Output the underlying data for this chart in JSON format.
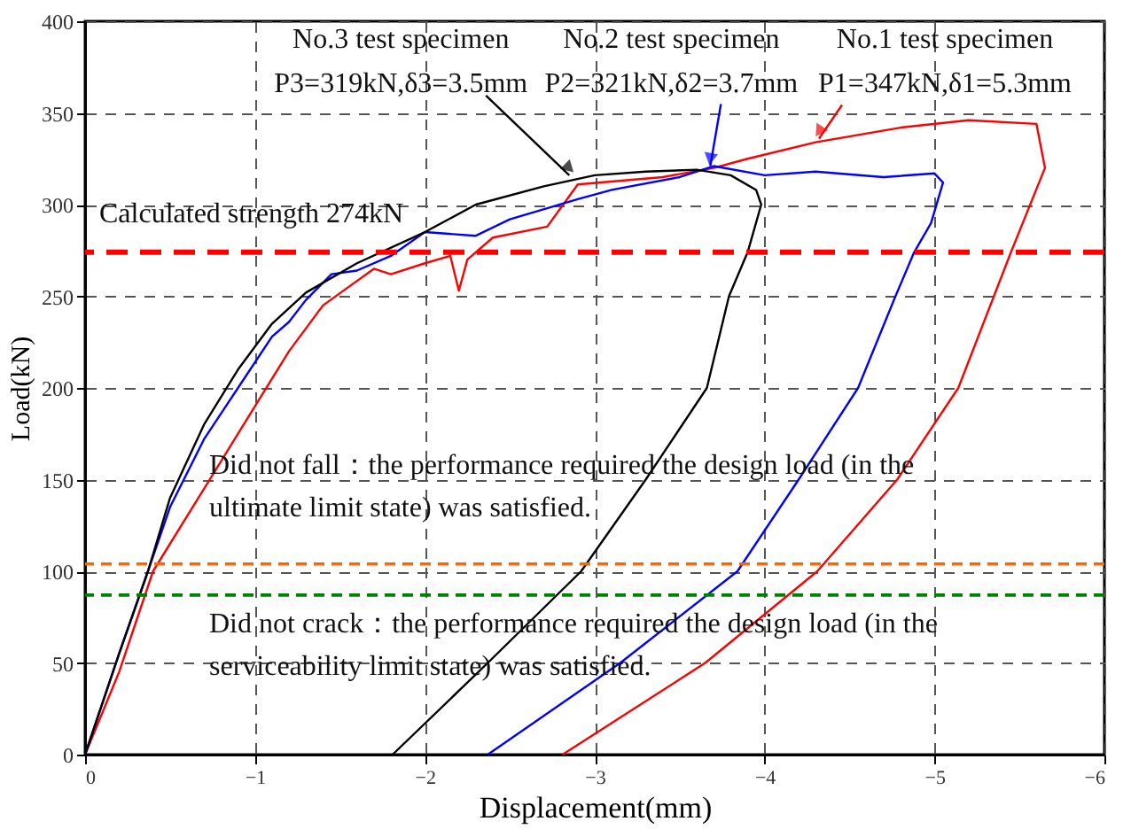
{
  "chart_data": {
    "type": "line",
    "xlabel": "Displacement(mm)",
    "ylabel": "Load(kN)",
    "xlim": [
      0,
      -6
    ],
    "xticks": [
      0,
      -1,
      -2,
      -3,
      -4,
      -5,
      -6
    ],
    "ylim": [
      0,
      400
    ],
    "yticks": [
      0,
      50,
      100,
      150,
      200,
      250,
      300,
      350,
      400
    ],
    "grid": true,
    "line_style": "solid",
    "marker": "none",
    "series": [
      {
        "color": "#ff0000",
        "x": [
          0,
          -0.2,
          -0.4,
          -0.6,
          -0.8,
          -1.0,
          -1.2,
          -1.4,
          -1.55,
          -1.7,
          -1.8,
          -2.0,
          -2.15,
          -2.2,
          -2.25,
          -2.4,
          -2.72,
          -2.9,
          -3.4,
          -3.7,
          -3.9,
          -4.3,
          -4.8,
          -5.2,
          -5.6,
          -5.65,
          -5.45,
          -5.14,
          -4.78,
          -4.31,
          -3.65,
          -2.81
        ],
        "values": [
          0,
          45,
          100,
          130,
          160,
          190,
          220,
          245,
          255,
          265,
          262,
          268,
          272,
          253,
          270,
          282,
          288,
          311,
          315,
          320,
          325,
          334,
          342,
          346,
          344,
          320,
          274,
          200,
          150,
          100,
          50,
          0
        ]
      },
      {
        "color": "#0000ff",
        "x": [
          0,
          -0.2,
          -0.37,
          -0.5,
          -0.7,
          -0.9,
          -1.1,
          -1.2,
          -1.3,
          -1.45,
          -1.6,
          -1.8,
          -2.0,
          -2.3,
          -2.5,
          -2.9,
          -3.1,
          -3.5,
          -3.7,
          -4.0,
          -4.3,
          -4.7,
          -5.0,
          -5.05,
          -4.98,
          -4.88,
          -4.77,
          -4.55,
          -4.2,
          -3.84,
          -3.15,
          -2.37
        ],
        "values": [
          0,
          55,
          100,
          135,
          172,
          200,
          228,
          236,
          248,
          262,
          264,
          272,
          285,
          283,
          292,
          303,
          308,
          315,
          321,
          316,
          318,
          315,
          317,
          312,
          290,
          274,
          250,
          200,
          150,
          100,
          50,
          0
        ]
      },
      {
        "color": "#000000",
        "x": [
          0,
          -0.2,
          -0.37,
          -0.5,
          -0.7,
          -0.9,
          -1.1,
          -1.3,
          -1.6,
          -2.0,
          -2.3,
          -2.7,
          -3.0,
          -3.3,
          -3.6,
          -3.8,
          -3.95,
          -3.98,
          -3.9,
          -3.79,
          -3.66,
          -3.3,
          -2.92,
          -2.37,
          -1.81
        ],
        "values": [
          0,
          55,
          100,
          140,
          180,
          210,
          235,
          252,
          268,
          285,
          300,
          310,
          316,
          318,
          319,
          316,
          308,
          300,
          274,
          250,
          200,
          150,
          100,
          50,
          0
        ]
      }
    ],
    "ref_lines": [
      {
        "axis": "y",
        "value": 274,
        "label": "Calculated strength 274kN",
        "color": "#ff0000",
        "line_style": "dashed"
      },
      {
        "axis": "y",
        "value": 104,
        "label": "Did not fall：the performance required the design load (in the ultimate limit state) was satisfied.",
        "color": "#ff6600",
        "line_style": "dashed"
      },
      {
        "axis": "y",
        "value": 87,
        "label": "Did not crack：the performance required the design load (in the serviceability limit state) was satisfied.",
        "color": "#008000",
        "line_style": "dashed"
      }
    ],
    "annotations": [
      {
        "text": "No.3 test specimen\nP3=319kN,δ3=3.5mm",
        "x": -2.85,
        "y": 316
      },
      {
        "text": "No.2 test specimen\nP2=321kN,δ2=3.7mm",
        "x": -3.68,
        "y": 321
      },
      {
        "text": "No.1 test specimen\nP1=347kN,δ1=5.3mm",
        "x": -4.32,
        "y": 336
      }
    ]
  }
}
